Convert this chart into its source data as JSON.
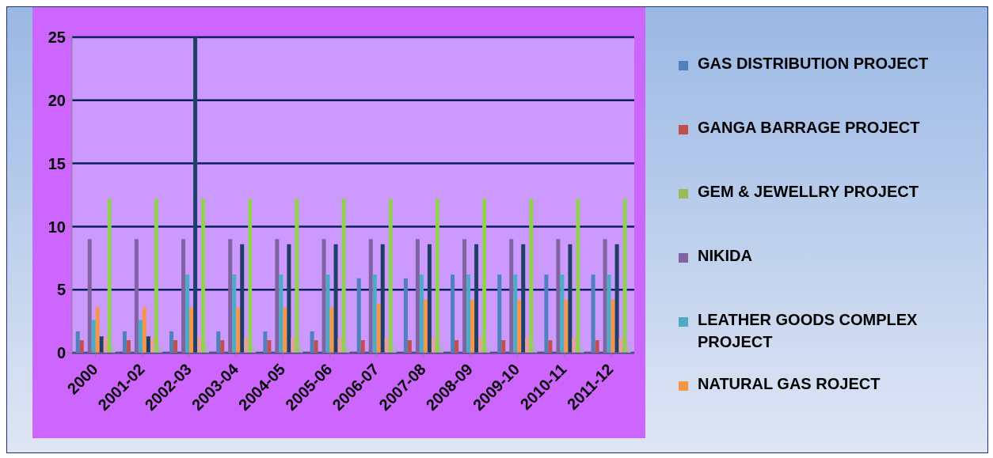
{
  "chart_data": {
    "type": "bar",
    "categories": [
      "2000",
      "2001-02",
      "2002-03",
      "2003-04",
      "2004-05",
      "2005-06",
      "2006-07",
      "2007-08",
      "2008-09",
      "2009-10",
      "2010-11",
      "2011-12"
    ],
    "series": [
      {
        "name": "GAS DISTRIBUTION PROJECT",
        "color": "#4f81bd",
        "values": [
          1.7,
          1.7,
          1.7,
          1.7,
          1.7,
          1.7,
          5.9,
          5.9,
          6.2,
          6.2,
          6.2,
          6.2
        ]
      },
      {
        "name": "GANGA BARRAGE PROJECT",
        "color": "#c0504d",
        "values": [
          1,
          1,
          1,
          1,
          1,
          1,
          1,
          1,
          1,
          1,
          1,
          1
        ]
      },
      {
        "name": "GEM & JEWELLRY PROJECT",
        "color": "#9bbb59",
        "values": [
          0,
          0,
          0,
          0,
          0,
          0,
          0,
          0,
          0,
          0,
          0,
          0
        ]
      },
      {
        "name": "NIKIDA",
        "color": "#8064a2",
        "values": [
          9,
          9,
          9,
          9,
          9,
          9,
          9,
          9,
          9,
          9,
          9,
          9
        ]
      },
      {
        "name": "LEATHER GOODS COMPLEX PROJECT",
        "color": "#4bacc6",
        "values": [
          2.6,
          2.6,
          6.2,
          6.2,
          6.2,
          6.2,
          6.2,
          6.2,
          6.2,
          6.2,
          6.2,
          6.2
        ]
      },
      {
        "name": "NATURAL GAS ROJECT",
        "color": "#f79646",
        "values": [
          3.6,
          3.6,
          3.6,
          3.6,
          3.6,
          3.6,
          3.9,
          4.2,
          4.2,
          4.2,
          4.2,
          4.2
        ]
      },
      {
        "color": "#1f3f66",
        "values": [
          1.3,
          1.3,
          25,
          8.6,
          8.6,
          8.6,
          8.6,
          8.6,
          8.6,
          8.6,
          8.6,
          8.6
        ]
      },
      {
        "color": "#e6a0a0",
        "values": [
          1.2,
          1.2,
          1.2,
          1.2,
          1.2,
          1.2,
          1.2,
          1.2,
          1.2,
          1.2,
          1.2,
          1.2
        ]
      },
      {
        "color": "#92d050",
        "values": [
          12.2,
          12.2,
          12.2,
          12.2,
          12.2,
          12.2,
          12.2,
          12.2,
          12.2,
          12.2,
          12.2,
          12.2
        ]
      },
      {
        "color": "#b8a8d8",
        "values": [
          0.6,
          0.6,
          0.6,
          0.6,
          0.6,
          0.6,
          0.6,
          0.6,
          0.6,
          0.6,
          0.6,
          0.6
        ]
      }
    ],
    "ylim": [
      0,
      25
    ],
    "yticks": [
      0,
      5,
      10,
      15,
      20,
      25
    ],
    "grid": "y",
    "legend": "right"
  }
}
